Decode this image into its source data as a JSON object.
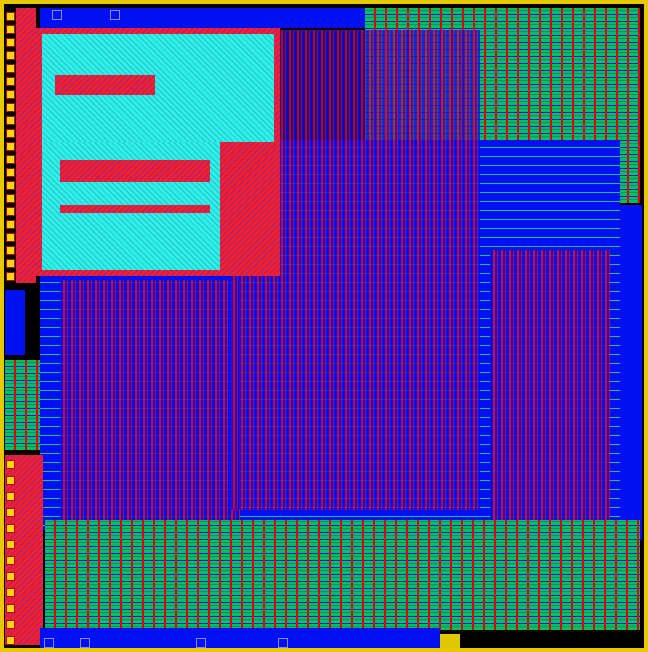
{
  "colors": {
    "background": "#000000",
    "boundary": "#e8c800",
    "metal_blue": "#0010f0",
    "metal_red": "#ff0000",
    "fill_green": "#00c060",
    "sram_cyan": "#30f0e8",
    "pad_yellow": "#ffd800"
  },
  "regions": [
    {
      "name": "sram-macro",
      "color": "cyan"
    },
    {
      "name": "top-right-logic",
      "color": "green"
    },
    {
      "name": "core-logic",
      "color": "blue-red"
    },
    {
      "name": "bottom-logic",
      "color": "green"
    },
    {
      "name": "left-io-column",
      "color": "yellow-red"
    }
  ]
}
